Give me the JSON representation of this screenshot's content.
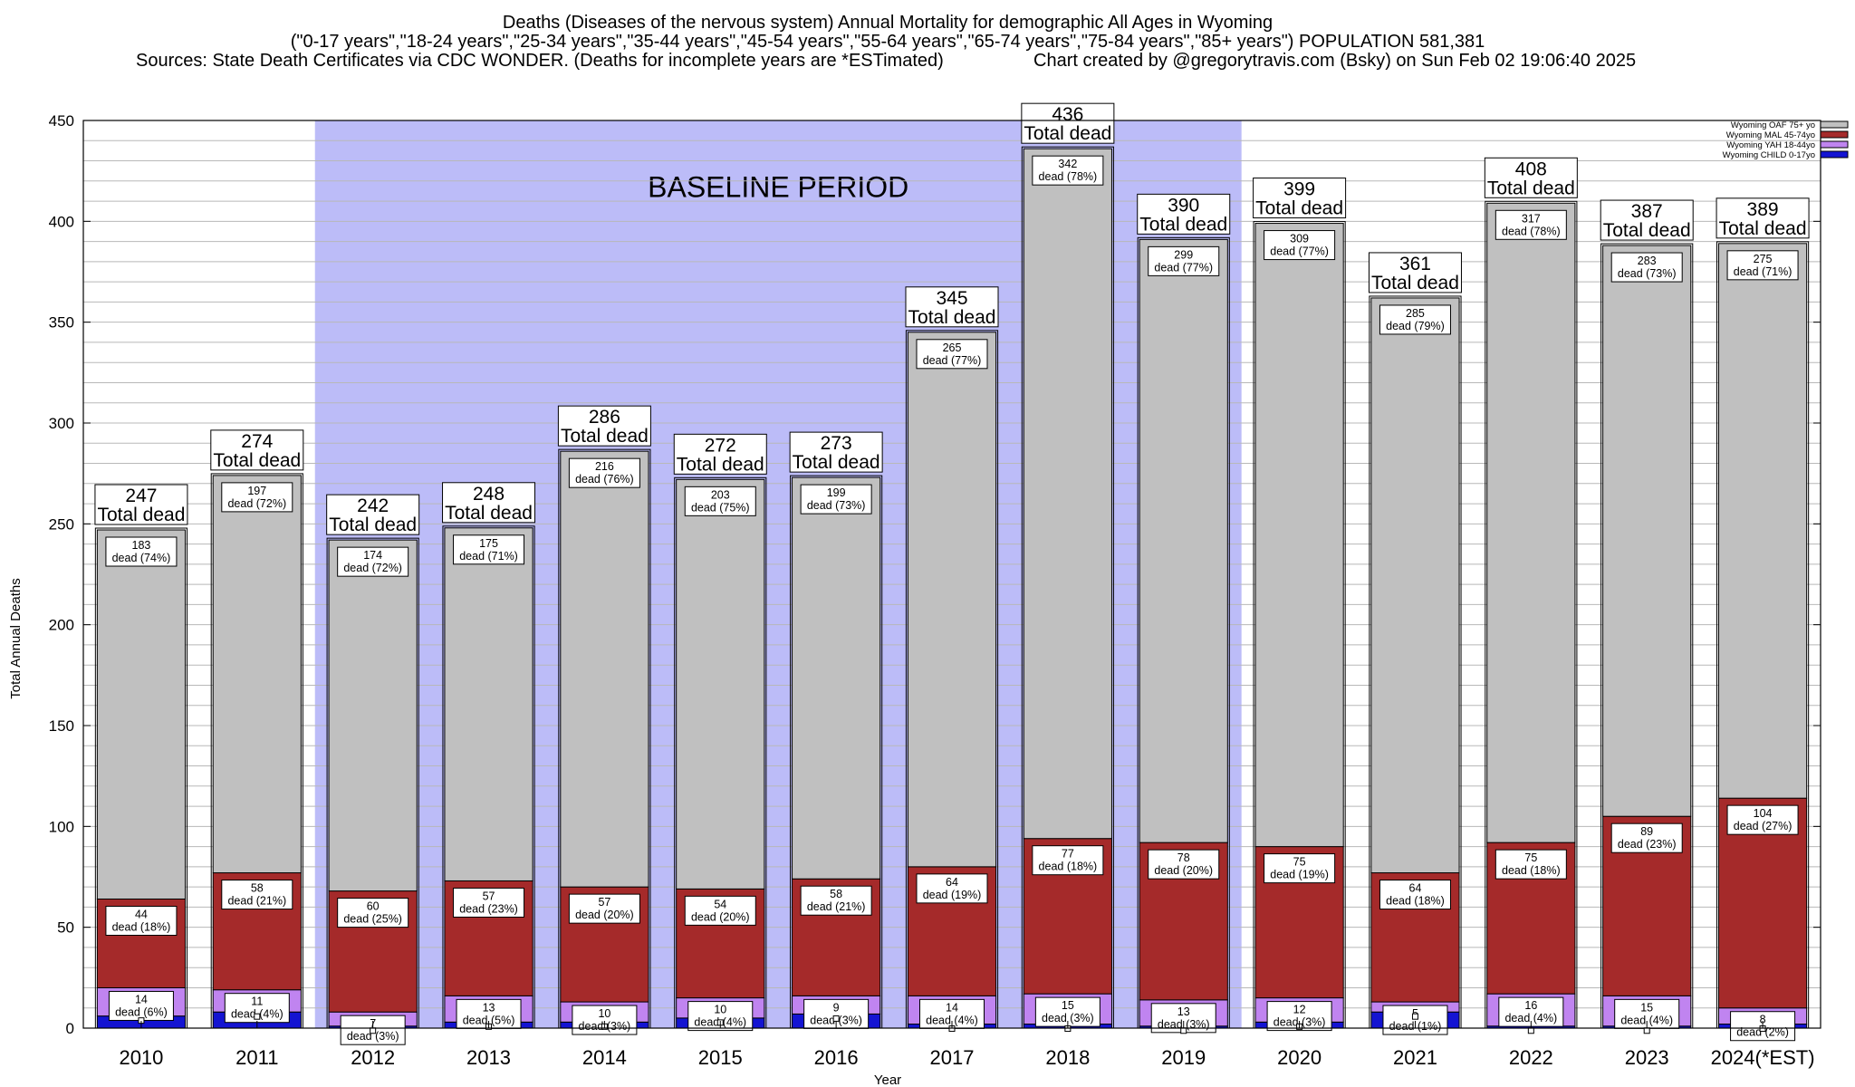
{
  "title": {
    "line1": "Deaths (Diseases of the nervous system) Annual Mortality for demographic All Ages in Wyoming",
    "line2": "(\"0-17 years\",\"18-24 years\",\"25-34 years\",\"35-44 years\",\"45-54 years\",\"55-64 years\",\"65-74 years\",\"75-84 years\",\"85+ years\") POPULATION 581,381",
    "line3_left": "Sources: State Death Certificates via CDC WONDER. (Deaths for incomplete years are *ESTimated)",
    "line3_right": "Chart created by @gregorytravis.com (Bsky) on Sun Feb 02 19:06:40 2025"
  },
  "colors": {
    "child": "#1414d2",
    "yah": "#c084f0",
    "mal": "#a52a2a",
    "oaf": "#c0c0c0",
    "baseline": "#bcbcf8"
  },
  "chart_data": {
    "type": "bar",
    "stacked": true,
    "xlabel": "Year",
    "ylabel": "Total Annual Deaths",
    "ylim": [
      0,
      450
    ],
    "yticks": [
      0,
      50,
      100,
      150,
      200,
      250,
      300,
      350,
      400,
      450
    ],
    "grid": true,
    "categories": [
      "2010",
      "2011",
      "2012",
      "2013",
      "2014",
      "2015",
      "2016",
      "2017",
      "2018",
      "2019",
      "2020",
      "2021",
      "2022",
      "2023",
      "2024(*EST)"
    ],
    "baseline_period": {
      "label": "BASELINE PERIOD",
      "from": "2012",
      "to": "2019"
    },
    "legend_position": "top-right",
    "series": [
      {
        "name": "Wyoming CHILD 0-17yo",
        "key": "child",
        "values": [
          6,
          8,
          1,
          3,
          3,
          5,
          7,
          2,
          2,
          1,
          3,
          8,
          1,
          1,
          2
        ]
      },
      {
        "name": "Wyoming YAH 18-44yo",
        "key": "yah",
        "values": [
          14,
          11,
          7,
          13,
          10,
          10,
          9,
          14,
          15,
          13,
          12,
          5,
          16,
          15,
          8
        ]
      },
      {
        "name": "Wyoming MAL 45-74yo",
        "key": "mal",
        "values": [
          44,
          58,
          60,
          57,
          57,
          54,
          58,
          64,
          77,
          78,
          75,
          64,
          75,
          89,
          104
        ]
      },
      {
        "name": "Wyoming OAF 75+ yo",
        "key": "oaf",
        "values": [
          183,
          197,
          174,
          175,
          216,
          203,
          199,
          265,
          342,
          299,
          309,
          285,
          317,
          283,
          275
        ]
      }
    ],
    "totals": [
      247,
      274,
      242,
      248,
      286,
      272,
      273,
      345,
      436,
      390,
      399,
      361,
      408,
      387,
      389
    ],
    "oaf_labels": [
      "183",
      "197",
      "174",
      "175",
      "216",
      "203",
      "199",
      "265",
      "342",
      "299",
      "309",
      "285",
      "317",
      "283",
      "275"
    ],
    "oaf_pct": [
      "dead (74%)",
      "dead (72%)",
      "dead (72%)",
      "dead (71%)",
      "dead (76%)",
      "dead (75%)",
      "dead (73%)",
      "dead (77%)",
      "dead (78%)",
      "dead (77%)",
      "dead (77%)",
      "dead (79%)",
      "dead (78%)",
      "dead (73%)",
      "dead (71%)"
    ],
    "mal_labels": [
      "44",
      "58",
      "60",
      "57",
      "57",
      "54",
      "58",
      "64",
      "77",
      "78",
      "75",
      "64",
      "75",
      "89",
      "104"
    ],
    "mal_pct": [
      "dead (18%)",
      "dead (21%)",
      "dead (25%)",
      "dead (23%)",
      "dead (20%)",
      "dead (20%)",
      "dead (21%)",
      "dead (19%)",
      "dead (18%)",
      "dead (20%)",
      "dead (19%)",
      "dead (18%)",
      "dead (18%)",
      "dead (23%)",
      "dead (27%)"
    ],
    "yah_labels": [
      "14",
      "11",
      "7",
      "13",
      "10",
      "10",
      "9",
      "14",
      "15",
      "13",
      "12",
      "5",
      "16",
      "15",
      "8"
    ],
    "yah_pct": [
      "dead (6%)",
      "dead (4%)",
      "dead (3%)",
      "dead (5%)",
      "dead (3%)",
      "dead (4%)",
      "dead (3%)",
      "dead (4%)",
      "dead (3%)",
      "dead (3%)",
      "dead (3%)",
      "dead (1%)",
      "dead (4%)",
      "dead (4%)",
      "dead (2%)"
    ],
    "total_word": "Total dead"
  }
}
